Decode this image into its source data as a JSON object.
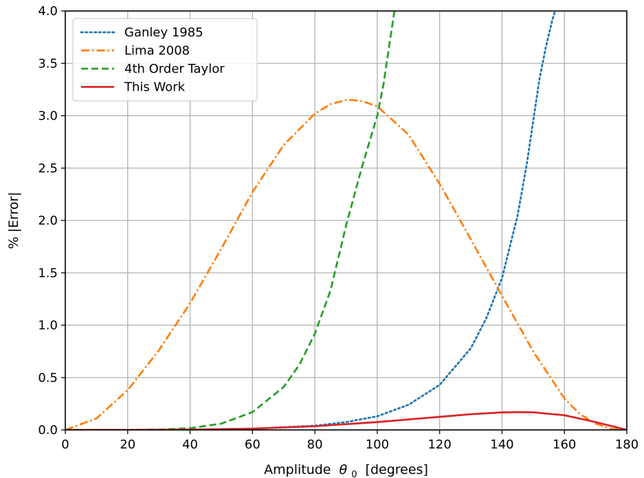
{
  "chart_data": {
    "type": "line",
    "title": "",
    "xlabel": "Amplitude",
    "xlabel_symbol": "θ",
    "xlabel_subscript": "0",
    "xlabel_units": "[degrees]",
    "ylabel": "% |Error|",
    "xlim": [
      0,
      180
    ],
    "ylim": [
      0,
      4.0
    ],
    "xticks": [
      0,
      20,
      40,
      60,
      80,
      100,
      120,
      140,
      160,
      180
    ],
    "yticks": [
      0.0,
      0.5,
      1.0,
      1.5,
      2.0,
      2.5,
      3.0,
      3.5,
      4.0
    ],
    "grid": true,
    "legend_position": "top-left",
    "series": [
      {
        "name": "Ganley 1985",
        "color": "#1f77b4",
        "style": "dotted",
        "x": [
          0,
          20,
          40,
          60,
          80,
          90,
          100,
          110,
          120,
          130,
          135,
          140,
          145,
          148,
          150,
          152,
          154,
          156,
          157
        ],
        "y": [
          0,
          0.0005,
          0.003,
          0.012,
          0.04,
          0.075,
          0.13,
          0.24,
          0.43,
          0.78,
          1.07,
          1.45,
          2.05,
          2.55,
          2.95,
          3.35,
          3.65,
          3.9,
          4.0
        ]
      },
      {
        "name": "Lima 2008",
        "color": "#ff7f0e",
        "style": "dashdot",
        "x": [
          0,
          10,
          20,
          30,
          40,
          50,
          60,
          70,
          80,
          85,
          90,
          92,
          95,
          100,
          110,
          120,
          130,
          140,
          150,
          160,
          165,
          170,
          175,
          180
        ],
        "y": [
          0,
          0.11,
          0.38,
          0.76,
          1.21,
          1.73,
          2.27,
          2.72,
          3.02,
          3.11,
          3.15,
          3.15,
          3.14,
          3.09,
          2.82,
          2.35,
          1.82,
          1.28,
          0.75,
          0.3,
          0.15,
          0.06,
          0.01,
          0
        ]
      },
      {
        "name": "4th Order Taylor",
        "color": "#2ca02c",
        "style": "dashed",
        "x": [
          0,
          20,
          30,
          40,
          50,
          60,
          70,
          75,
          80,
          85,
          90,
          95,
          100,
          102,
          104,
          105.5
        ],
        "y": [
          0,
          0.0005,
          0.003,
          0.017,
          0.06,
          0.17,
          0.41,
          0.62,
          0.92,
          1.33,
          1.95,
          2.5,
          3.0,
          3.3,
          3.7,
          4.0
        ]
      },
      {
        "name": "This Work",
        "color": "#d62728",
        "style": "solid",
        "x": [
          0,
          20,
          40,
          60,
          80,
          100,
          110,
          120,
          130,
          140,
          145,
          150,
          160,
          170,
          180
        ],
        "y": [
          0,
          0.0,
          0.003,
          0.012,
          0.035,
          0.075,
          0.1,
          0.125,
          0.15,
          0.167,
          0.17,
          0.168,
          0.14,
          0.075,
          0
        ]
      }
    ]
  }
}
